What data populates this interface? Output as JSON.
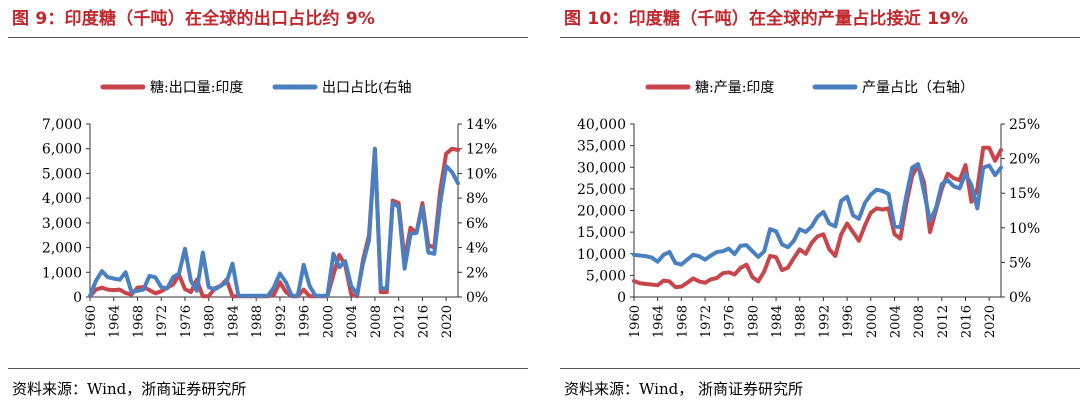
{
  "colors": {
    "title": "#c0282d",
    "series_red": "#c8464b",
    "series_blue": "#4a7fc1",
    "axis": "#333333"
  },
  "panels": [
    {
      "title": "图 9：印度糖（千吨）在全球的出口占比约 9%",
      "source": "资料来源：Wind，浙商证券研究所",
      "chart_data": {
        "type": "line",
        "title": "图 9：印度糖（千吨）在全球的出口占比约 9%",
        "x": [
          1960,
          1961,
          1962,
          1963,
          1964,
          1965,
          1966,
          1967,
          1968,
          1969,
          1970,
          1971,
          1972,
          1973,
          1974,
          1975,
          1976,
          1977,
          1978,
          1979,
          1980,
          1981,
          1982,
          1983,
          1984,
          1985,
          1986,
          1987,
          1988,
          1989,
          1990,
          1991,
          1992,
          1993,
          1994,
          1995,
          1996,
          1997,
          1998,
          1999,
          2000,
          2001,
          2002,
          2003,
          2004,
          2005,
          2006,
          2007,
          2008,
          2009,
          2010,
          2011,
          2012,
          2013,
          2014,
          2015,
          2016,
          2017,
          2018,
          2019,
          2020,
          2021,
          2022
        ],
        "x_ticks": [
          "1960",
          "1964",
          "1968",
          "1972",
          "1976",
          "1980",
          "1984",
          "1988",
          "1992",
          "1996",
          "2000",
          "2004",
          "2008",
          "2012",
          "2016",
          "2020"
        ],
        "y_left": {
          "ylim": [
            0,
            7000
          ],
          "ticks": [
            "0",
            "1,000",
            "2,000",
            "3,000",
            "4,000",
            "5,000",
            "6,000",
            "7,000"
          ]
        },
        "y_right": {
          "ylim": [
            0,
            14
          ],
          "ticks": [
            "0%",
            "2%",
            "4%",
            "6%",
            "8%",
            "10%",
            "12%",
            "14%"
          ]
        },
        "series": [
          {
            "name": "糖:出口量:印度",
            "axis": "left",
            "values": [
              30,
              300,
              380,
              300,
              280,
              300,
              160,
              100,
              380,
              400,
              280,
              150,
              230,
              380,
              500,
              900,
              320,
              200,
              700,
              30,
              30,
              350,
              450,
              700,
              30,
              30,
              30,
              30,
              30,
              30,
              30,
              100,
              600,
              200,
              30,
              30,
              300,
              30,
              30,
              30,
              30,
              900,
              1700,
              1300,
              100,
              30,
              1500,
              2500,
              6000,
              200,
              200,
              3900,
              3800,
              1500,
              2800,
              2600,
              3800,
              2100,
              2000,
              4300,
              5800,
              6000,
              5950
            ]
          },
          {
            "name": "出口占比(右轴",
            "axis": "right",
            "values": [
              0.1,
              1.3,
              2.1,
              1.6,
              1.5,
              1.4,
              2.0,
              0.4,
              0.5,
              0.6,
              1.7,
              1.6,
              0.8,
              0.7,
              1.6,
              1.9,
              3.9,
              1.3,
              0.5,
              3.6,
              0.8,
              0.6,
              0.9,
              1.2,
              2.7,
              0.1,
              0.1,
              0.1,
              0.1,
              0.1,
              0.1,
              0.8,
              1.9,
              1.2,
              0.1,
              0.1,
              2.6,
              0.9,
              0.1,
              0.1,
              0.1,
              3.5,
              2.4,
              2.9,
              0.9,
              0.2,
              2.7,
              4.6,
              12.0,
              0.7,
              0.7,
              7.6,
              7.3,
              2.3,
              5.1,
              5.2,
              7.3,
              3.6,
              3.5,
              7.6,
              10.6,
              10.1,
              9.2
            ]
          }
        ]
      }
    },
    {
      "title": "图 10：印度糖（千吨）在全球的产量占比接近 19%",
      "source": "资料来源：Wind， 浙商证券研究所",
      "chart_data": {
        "type": "line",
        "title": "图 10：印度糖（千吨）在全球的产量占比接近 19%",
        "x": [
          1960,
          1961,
          1962,
          1963,
          1964,
          1965,
          1966,
          1967,
          1968,
          1969,
          1970,
          1971,
          1972,
          1973,
          1974,
          1975,
          1976,
          1977,
          1978,
          1979,
          1980,
          1981,
          1982,
          1983,
          1984,
          1985,
          1986,
          1987,
          1988,
          1989,
          1990,
          1991,
          1992,
          1993,
          1994,
          1995,
          1996,
          1997,
          1998,
          1999,
          2000,
          2001,
          2002,
          2003,
          2004,
          2005,
          2006,
          2007,
          2008,
          2009,
          2010,
          2011,
          2012,
          2013,
          2014,
          2015,
          2016,
          2017,
          2018,
          2019,
          2020,
          2021,
          2022
        ],
        "x_ticks": [
          "1960",
          "1964",
          "1968",
          "1972",
          "1976",
          "1980",
          "1984",
          "1988",
          "1992",
          "1996",
          "2000",
          "2004",
          "2008",
          "2012",
          "2016",
          "2020"
        ],
        "y_left": {
          "ylim": [
            0,
            40000
          ],
          "ticks": [
            "0",
            "5,000",
            "10,000",
            "15,000",
            "20,000",
            "25,000",
            "30,000",
            "35,000",
            "40,000"
          ]
        },
        "y_right": {
          "ylim": [
            0,
            25
          ],
          "ticks": [
            "0%",
            "5%",
            "10%",
            "15%",
            "20%",
            "25%"
          ]
        },
        "series": [
          {
            "name": "糖:产量:印度",
            "axis": "left",
            "values": [
              3700,
              3200,
              3000,
              2900,
              2700,
              3800,
              3600,
              2300,
              2400,
              3300,
              4300,
              3600,
              3300,
              4100,
              4400,
              5500,
              5700,
              5200,
              6700,
              7500,
              4600,
              3600,
              5900,
              9500,
              9200,
              6200,
              6800,
              9000,
              11000,
              10000,
              12500,
              14000,
              14500,
              11000,
              9500,
              14500,
              17000,
              15000,
              13000,
              16500,
              19500,
              20500,
              20200,
              20500,
              14500,
              13500,
              21500,
              28000,
              30500,
              26500,
              15000,
              20000,
              25000,
              28500,
              27500,
              27000,
              30500,
              22000,
              25000,
              34500,
              34500,
              31500,
              34000
            ]
          },
          {
            "name": "产量占比（右轴）",
            "axis": "right",
            "values": [
              6.1,
              6.0,
              5.9,
              5.7,
              5.1,
              6.1,
              6.5,
              4.9,
              4.7,
              5.4,
              6.1,
              5.9,
              5.4,
              6.0,
              6.5,
              6.6,
              7.0,
              6.2,
              7.4,
              7.5,
              6.6,
              5.8,
              6.6,
              9.8,
              9.5,
              7.6,
              7.2,
              8.1,
              9.8,
              9.4,
              10.2,
              11.6,
              12.3,
              10.6,
              10.2,
              13.9,
              14.5,
              11.8,
              11.3,
              13.6,
              14.8,
              15.5,
              15.3,
              14.9,
              10.2,
              10.1,
              14.6,
              18.7,
              19.2,
              15.2,
              11.0,
              12.8,
              16.3,
              16.9,
              16.0,
              15.7,
              17.8,
              16.2,
              12.8,
              18.7,
              19.0,
              17.6,
              18.7
            ]
          }
        ]
      }
    }
  ]
}
